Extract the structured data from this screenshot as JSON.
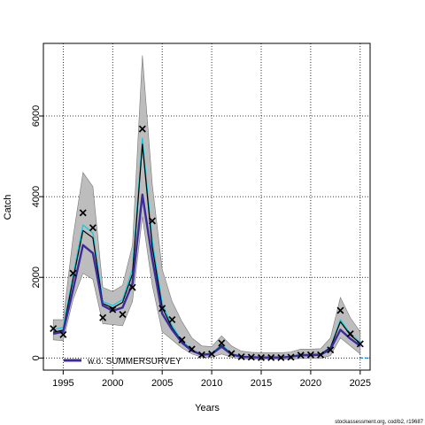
{
  "chart_data": {
    "type": "line",
    "title": "",
    "xlabel": "Years",
    "ylabel": "Catch",
    "xlim": [
      1993,
      2026
    ],
    "ylim": [
      -300,
      7800
    ],
    "xticks": [
      1995,
      2000,
      2005,
      2010,
      2015,
      2020,
      2025
    ],
    "yticks": [
      0,
      2000,
      4000,
      6000
    ],
    "grid": true,
    "legend_position": "bottom-left",
    "years": [
      1994,
      1995,
      1996,
      1997,
      1998,
      1999,
      2000,
      2001,
      2002,
      2003,
      2004,
      2005,
      2006,
      2007,
      2008,
      2009,
      2010,
      2011,
      2012,
      2013,
      2014,
      2015,
      2016,
      2017,
      2018,
      2019,
      2020,
      2021,
      2022,
      2023,
      2024,
      2025
    ],
    "observed": [
      730,
      580,
      2100,
      3600,
      3230,
      1000,
      1200,
      1080,
      1750,
      5680,
      3400,
      1230,
      950,
      450,
      220,
      80,
      100,
      370,
      110,
      30,
      20,
      10,
      10,
      10,
      20,
      70,
      80,
      80,
      200,
      1180,
      600,
      350
    ],
    "band_upper": [
      950,
      950,
      3000,
      4600,
      4250,
      1750,
      1650,
      1800,
      2800,
      7500,
      4300,
      2200,
      1400,
      900,
      500,
      300,
      280,
      550,
      300,
      170,
      140,
      130,
      130,
      130,
      150,
      220,
      220,
      230,
      500,
      1500,
      1000,
      650
    ],
    "band_lower": [
      450,
      430,
      1450,
      2100,
      1950,
      850,
      830,
      800,
      1400,
      3500,
      1800,
      650,
      450,
      250,
      100,
      20,
      20,
      100,
      20,
      -20,
      -30,
      -30,
      -30,
      -30,
      -30,
      -10,
      -10,
      -10,
      60,
      500,
      300,
      100
    ],
    "series": [
      {
        "name": "",
        "color": "#00cfe6",
        "values": [
          700,
          760,
          2050,
          3300,
          3100,
          1400,
          1300,
          1450,
          2200,
          5450,
          2900,
          1350,
          800,
          430,
          200,
          90,
          120,
          330,
          110,
          40,
          30,
          25,
          25,
          25,
          40,
          90,
          90,
          100,
          270,
          950,
          600,
          380
        ]
      },
      {
        "name": "",
        "color": "#000000",
        "values": [
          640,
          690,
          1960,
          3160,
          2980,
          1350,
          1240,
          1380,
          2080,
          5300,
          2750,
          1250,
          750,
          400,
          190,
          85,
          110,
          310,
          100,
          35,
          25,
          20,
          20,
          20,
          35,
          85,
          85,
          95,
          260,
          900,
          570,
          360
        ]
      },
      {
        "name": "w.o. SUMMERSURVEY",
        "color": "#3a2a9a",
        "values": [
          600,
          650,
          1700,
          2800,
          2600,
          1300,
          1170,
          1250,
          1850,
          4050,
          2450,
          1100,
          700,
          380,
          180,
          80,
          100,
          280,
          90,
          30,
          20,
          15,
          15,
          15,
          30,
          70,
          70,
          80,
          220,
          700,
          480,
          300
        ]
      }
    ],
    "projection": {
      "color": "#1a8cd8",
      "years": [
        2025,
        2026
      ],
      "values": [
        0,
        0
      ]
    },
    "legend": {
      "label": "w.o. SUMMERSURVEY"
    },
    "credit": "stockassessment.org, cod/b2, r19687"
  }
}
